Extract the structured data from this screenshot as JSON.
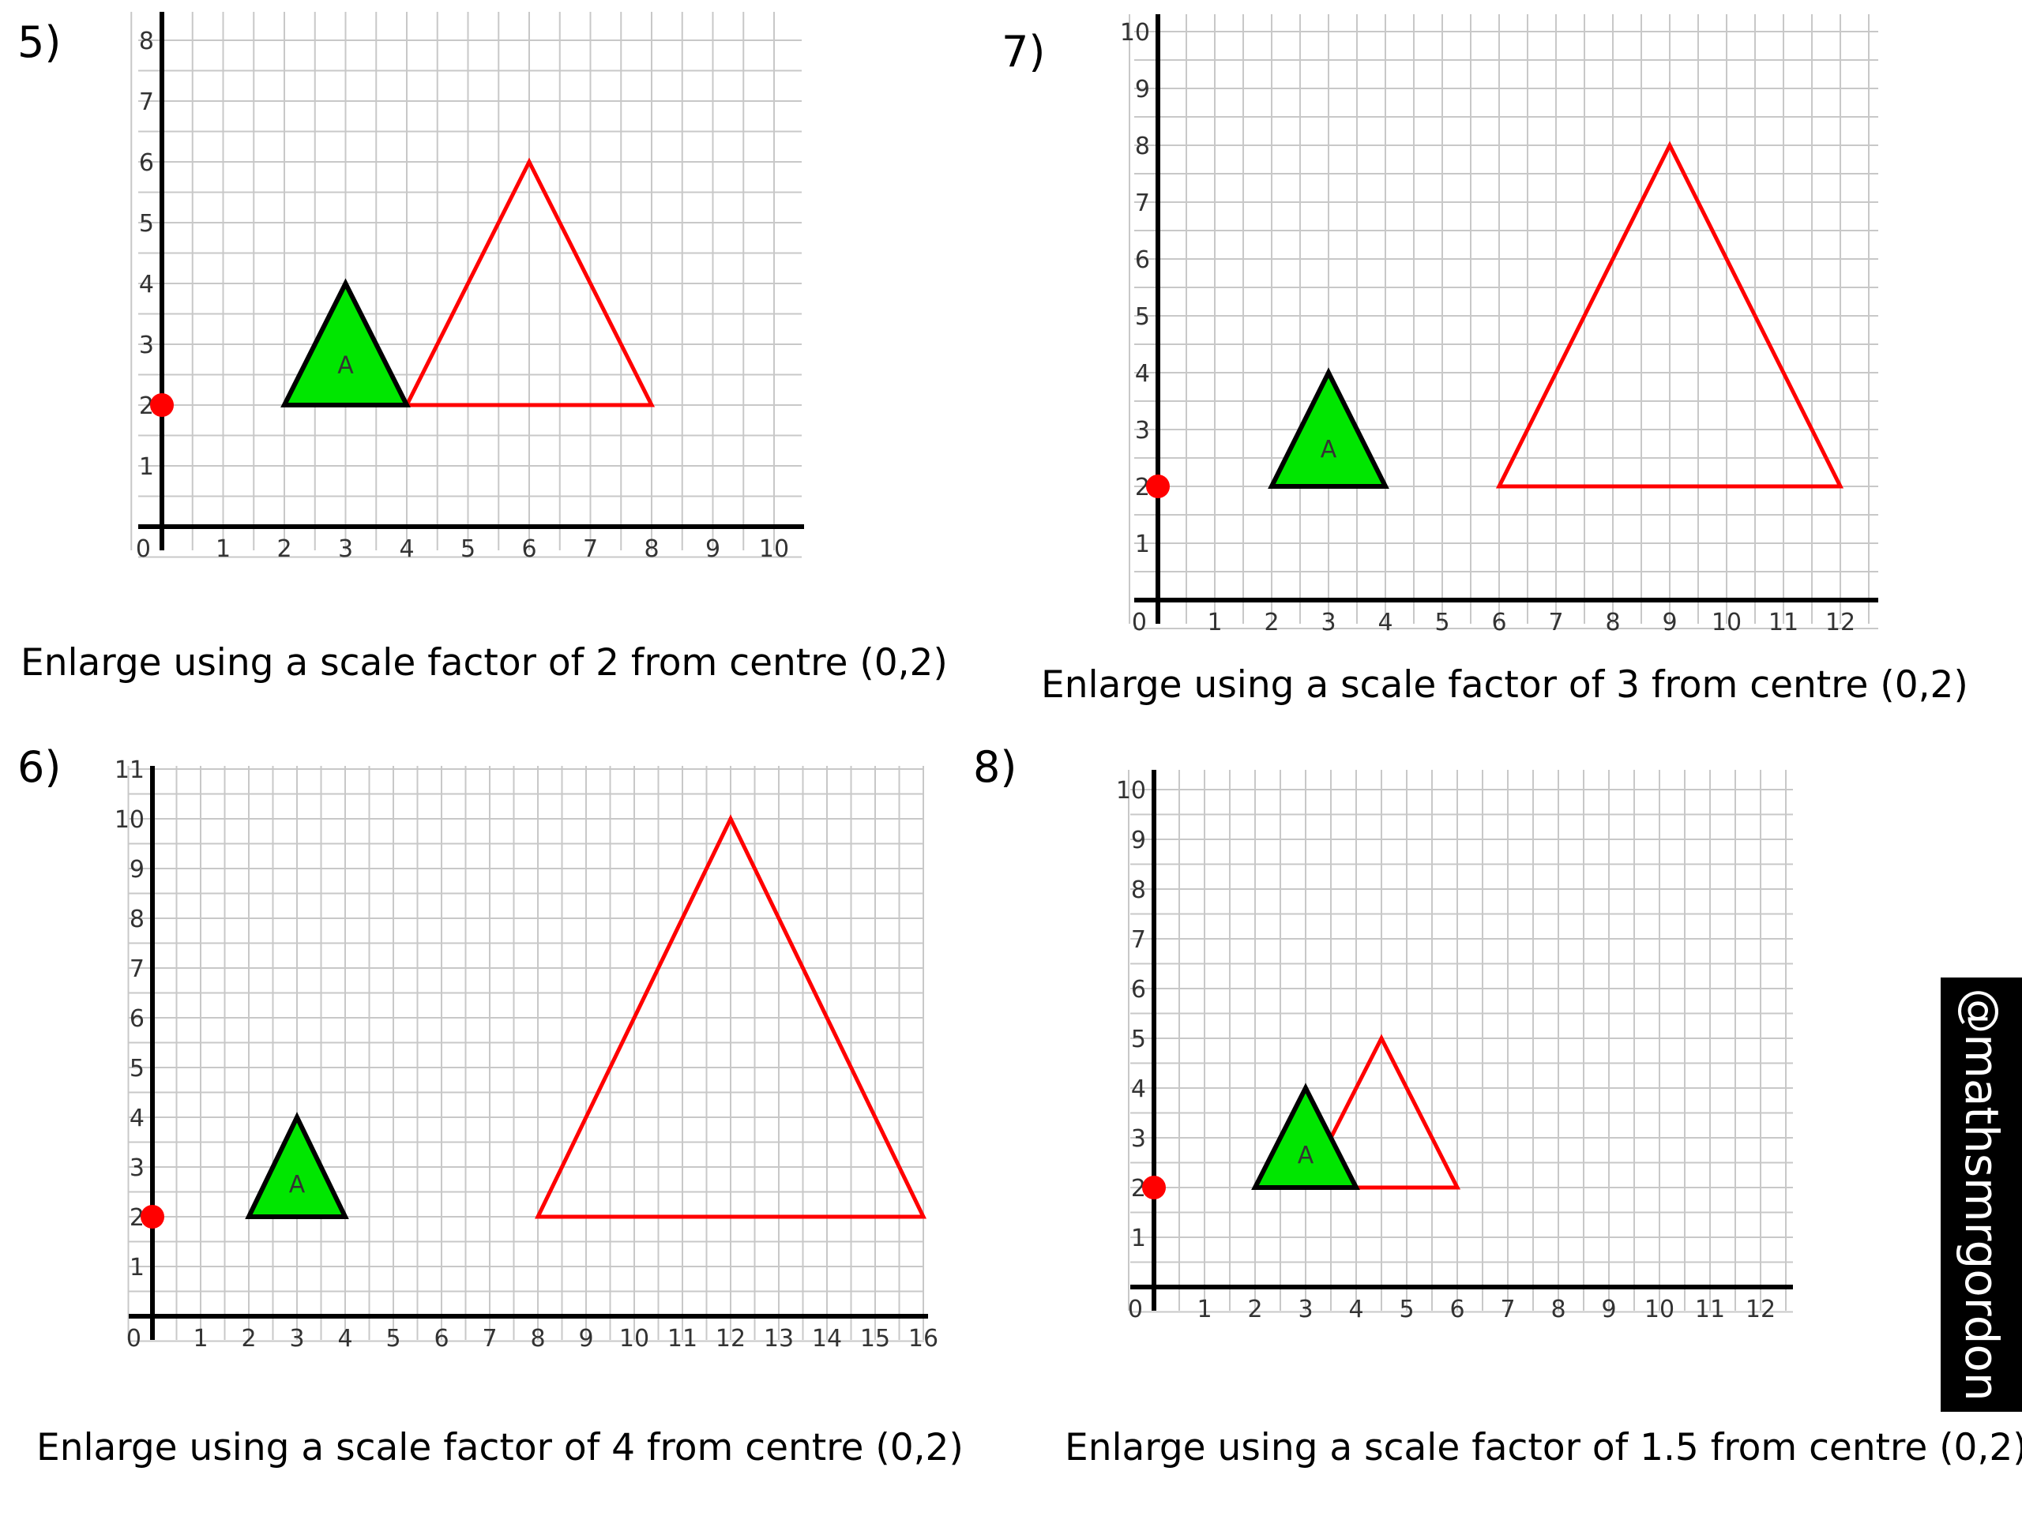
{
  "problems": [
    {
      "number": "5)",
      "caption": "Enlarge using a scale factor of 2 from centre (0,2)",
      "x_max": 10,
      "y_max": 8,
      "x_ticks": [
        "1",
        "2",
        "3",
        "4",
        "5",
        "6",
        "7",
        "8",
        "9",
        "10"
      ],
      "y_ticks": [
        "1",
        "2",
        "3",
        "4",
        "5",
        "6",
        "7",
        "8"
      ],
      "origin_label": "0",
      "shape_label": "A",
      "centre": [
        0,
        2
      ],
      "triangle_a": [
        [
          2,
          2
        ],
        [
          4,
          2
        ],
        [
          3,
          4
        ]
      ],
      "triangle_image": [
        [
          4,
          2
        ],
        [
          8,
          2
        ],
        [
          6,
          6
        ]
      ]
    },
    {
      "number": "7)",
      "caption": "Enlarge using a scale factor of 3 from centre (0,2)",
      "x_max": 12,
      "y_max": 10,
      "x_ticks": [
        "1",
        "2",
        "3",
        "4",
        "5",
        "6",
        "7",
        "8",
        "9",
        "10",
        "11",
        "12"
      ],
      "y_ticks": [
        "1",
        "2",
        "3",
        "4",
        "5",
        "6",
        "7",
        "8",
        "9",
        "10"
      ],
      "origin_label": "0",
      "shape_label": "A",
      "centre": [
        0,
        2
      ],
      "triangle_a": [
        [
          2,
          2
        ],
        [
          4,
          2
        ],
        [
          3,
          4
        ]
      ],
      "triangle_image": [
        [
          6,
          2
        ],
        [
          12,
          2
        ],
        [
          9,
          8
        ]
      ]
    },
    {
      "number": "6)",
      "caption": "Enlarge using a scale factor of 4 from centre (0,2)",
      "x_max": 16,
      "y_max": 11,
      "x_ticks": [
        "1",
        "2",
        "3",
        "4",
        "5",
        "6",
        "7",
        "8",
        "9",
        "10",
        "11",
        "12",
        "13",
        "14",
        "15",
        "16"
      ],
      "y_ticks": [
        "1",
        "2",
        "3",
        "4",
        "5",
        "6",
        "7",
        "8",
        "9",
        "10",
        "11"
      ],
      "origin_label": "0",
      "shape_label": "A",
      "centre": [
        0,
        2
      ],
      "triangle_a": [
        [
          2,
          2
        ],
        [
          4,
          2
        ],
        [
          3,
          4
        ]
      ],
      "triangle_image": [
        [
          8,
          2
        ],
        [
          16,
          2
        ],
        [
          12,
          10
        ]
      ]
    },
    {
      "number": "8)",
      "caption": "Enlarge using a scale factor of 1.5 from centre (0,2)",
      "x_max": 12,
      "y_max": 10,
      "x_ticks": [
        "1",
        "2",
        "3",
        "4",
        "5",
        "6",
        "7",
        "8",
        "9",
        "10",
        "11",
        "12"
      ],
      "y_ticks": [
        "1",
        "2",
        "3",
        "4",
        "5",
        "6",
        "7",
        "8",
        "9",
        "10"
      ],
      "origin_label": "0",
      "shape_label": "A",
      "centre": [
        0,
        2
      ],
      "triangle_a": [
        [
          2,
          2
        ],
        [
          4,
          2
        ],
        [
          3,
          4
        ]
      ],
      "triangle_image": [
        [
          3,
          2
        ],
        [
          6,
          2
        ],
        [
          4.5,
          5
        ]
      ]
    }
  ],
  "watermark": "@mathsmrgordon",
  "colors": {
    "shape_a_fill": "#00e600",
    "image_stroke": "#ff0000",
    "centre_point": "#ff0000",
    "grid": "#c8c8c8"
  }
}
